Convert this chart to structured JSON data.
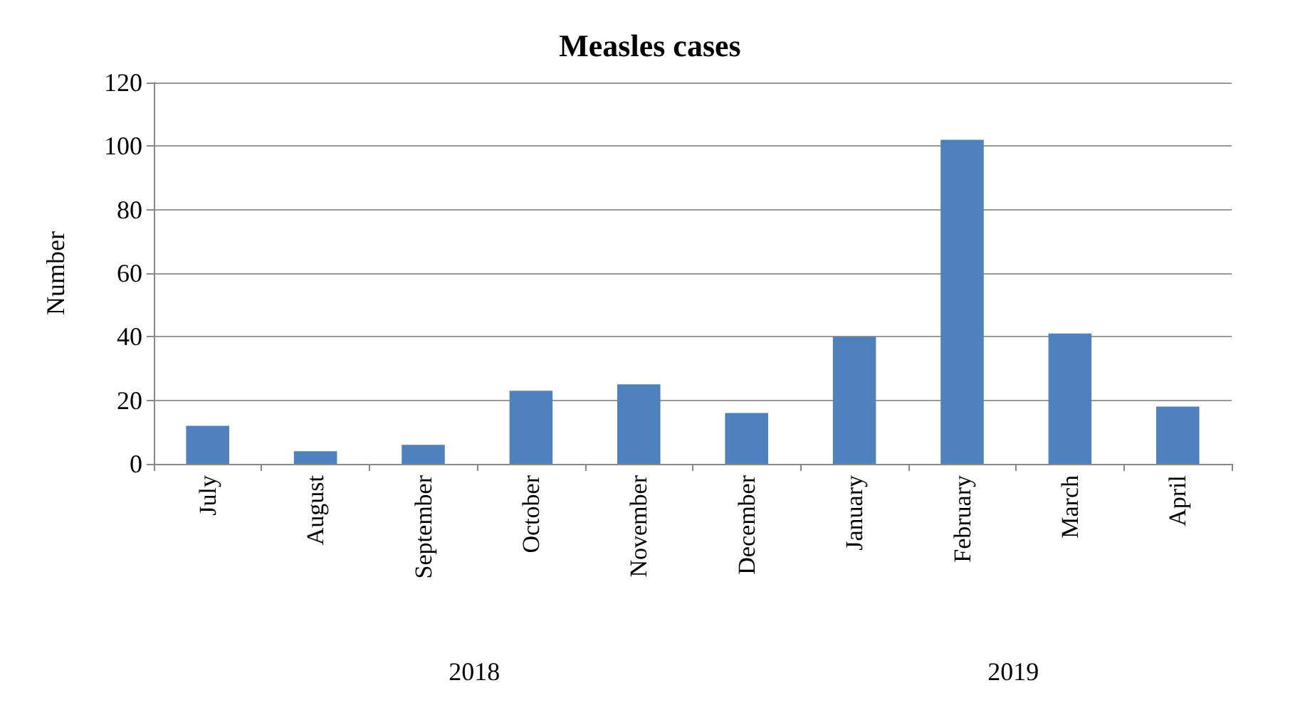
{
  "chart_data": {
    "type": "bar",
    "title": "Measles cases",
    "ylabel": "Number",
    "categories": [
      "July",
      "August",
      "September",
      "October",
      "November",
      "December",
      "January",
      "February",
      "March",
      "April"
    ],
    "values": [
      12,
      4,
      6,
      23,
      25,
      16,
      40,
      102,
      41,
      18
    ],
    "color": "#4f81bd",
    "ylim": [
      0,
      120
    ],
    "yticks": [
      0,
      20,
      40,
      60,
      80,
      100,
      120
    ],
    "grid": "y",
    "annotations": [
      "2018",
      "2019"
    ]
  }
}
